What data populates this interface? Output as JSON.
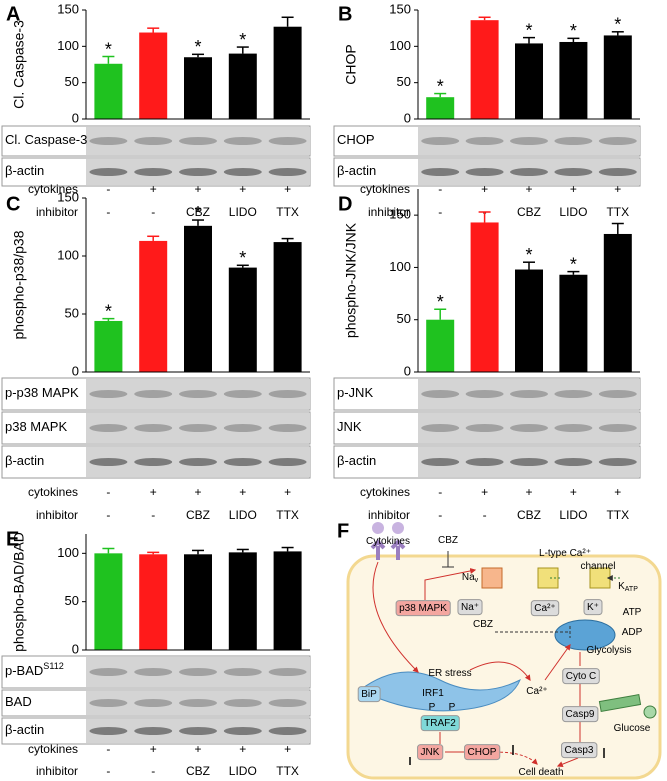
{
  "chart_data": [
    {
      "type": "bar",
      "panel": "A",
      "y_label": "Cl. Caspase-3",
      "values": [
        76,
        119,
        85,
        90,
        127
      ],
      "errors": [
        10,
        6,
        4,
        9,
        13
      ],
      "markers": [
        "*",
        null,
        "*",
        "*",
        null
      ],
      "colors": [
        "#1fc21f",
        "#ff1a1a",
        "#000000",
        "#000000",
        "#000000"
      ],
      "ylim": [
        0,
        150
      ],
      "yticks": [
        0,
        50,
        100,
        150
      ],
      "blots": [
        {
          "label": "Cl. Caspase-3"
        },
        {
          "label": "β-actin"
        }
      ],
      "condition_rows": [
        {
          "label": "cytokines",
          "values": [
            "-",
            "+",
            "+",
            "+",
            "+"
          ]
        },
        {
          "label": "inhibitor",
          "values": [
            "-",
            "-",
            "CBZ",
            "LIDO",
            "TTX"
          ]
        }
      ]
    },
    {
      "type": "bar",
      "panel": "B",
      "y_label": "CHOP",
      "values": [
        30,
        136,
        104,
        106,
        115
      ],
      "errors": [
        5,
        4,
        8,
        5,
        5
      ],
      "markers": [
        "*",
        null,
        "*",
        "*",
        "*"
      ],
      "colors": [
        "#1fc21f",
        "#ff1a1a",
        "#000000",
        "#000000",
        "#000000"
      ],
      "ylim": [
        0,
        150
      ],
      "yticks": [
        0,
        50,
        100,
        150
      ],
      "blots": [
        {
          "label": "CHOP"
        },
        {
          "label": "β-actin"
        }
      ],
      "condition_rows": [
        {
          "label": "cytokines",
          "values": [
            "-",
            "+",
            "+",
            "+",
            "+"
          ]
        },
        {
          "label": "inhibitor",
          "values": [
            "-",
            "-",
            "CBZ",
            "LIDO",
            "TTX"
          ]
        }
      ]
    },
    {
      "type": "bar",
      "panel": "C",
      "y_label": "phospho-p38/p38",
      "values": [
        44,
        113,
        126,
        90,
        112
      ],
      "errors": [
        2,
        4,
        5,
        2,
        3
      ],
      "markers": [
        "*",
        null,
        "*",
        "*",
        null
      ],
      "colors": [
        "#1fc21f",
        "#ff1a1a",
        "#000000",
        "#000000",
        "#000000"
      ],
      "ylim": [
        0,
        150
      ],
      "yticks": [
        0,
        50,
        100,
        150
      ],
      "blots": [
        {
          "label": "p-p38 MAPK"
        },
        {
          "label": "p38 MAPK"
        },
        {
          "label": "β-actin"
        }
      ],
      "condition_rows": [
        {
          "label": "cytokines",
          "values": [
            "-",
            "+",
            "+",
            "+",
            "+"
          ]
        },
        {
          "label": "inhibitor",
          "values": [
            "-",
            "-",
            "CBZ",
            "LIDO",
            "TTX"
          ]
        }
      ]
    },
    {
      "type": "bar",
      "panel": "D",
      "y_label": "phospho-JNK/JNK",
      "values": [
        50,
        143,
        98,
        93,
        132
      ],
      "errors": [
        10,
        10,
        7,
        3,
        10
      ],
      "markers": [
        "*",
        null,
        "*",
        "*",
        null
      ],
      "colors": [
        "#1fc21f",
        "#ff1a1a",
        "#000000",
        "#000000",
        "#000000"
      ],
      "ylim": [
        0,
        175
      ],
      "yticks": [
        0,
        50,
        100,
        150
      ],
      "blots": [
        {
          "label": "p-JNK"
        },
        {
          "label": "JNK"
        },
        {
          "label": "β-actin"
        }
      ],
      "condition_rows": [
        {
          "label": "cytokines",
          "values": [
            "-",
            "+",
            "+",
            "+",
            "+"
          ]
        },
        {
          "label": "inhibitor",
          "values": [
            "-",
            "-",
            "CBZ",
            "LIDO",
            "TTX"
          ]
        }
      ]
    },
    {
      "type": "bar",
      "panel": "E",
      "y_label": "phospho-BAD/BAD",
      "values": [
        100,
        99,
        99,
        101,
        102
      ],
      "errors": [
        5,
        2,
        4,
        3,
        4
      ],
      "markers": [
        null,
        null,
        null,
        null,
        null
      ],
      "colors": [
        "#1fc21f",
        "#ff1a1a",
        "#000000",
        "#000000",
        "#000000"
      ],
      "ylim": [
        0,
        120
      ],
      "yticks": [
        0,
        50,
        100
      ],
      "blots": [
        {
          "label": "p-BAD",
          "sup": "S112"
        },
        {
          "label": "BAD"
        },
        {
          "label": "β-actin"
        }
      ],
      "condition_rows": [
        {
          "label": "cytokines",
          "values": [
            "-",
            "+",
            "+",
            "+",
            "+"
          ]
        },
        {
          "label": "inhibitor",
          "values": [
            "-",
            "-",
            "CBZ",
            "LIDO",
            "TTX"
          ]
        }
      ]
    }
  ],
  "diagram": {
    "panel": "F",
    "nodes": [
      {
        "text": "Cytokines"
      },
      {
        "text": "CBZ"
      },
      {
        "text": "Na",
        "sub": "v"
      },
      {
        "text": "L-type Ca²⁺"
      },
      {
        "text": "channel"
      },
      {
        "text": "K",
        "sub": "ATP"
      },
      {
        "text": "p38 MAPK"
      },
      {
        "text": "Na⁺"
      },
      {
        "text": "Ca²⁺"
      },
      {
        "text": "K⁺"
      },
      {
        "text": "ATP"
      },
      {
        "text": "ADP"
      },
      {
        "text": "CBZ"
      },
      {
        "text": "Glycolysis"
      },
      {
        "text": "ER stress"
      },
      {
        "text": "Ca²⁺"
      },
      {
        "text": "Cyto C"
      },
      {
        "text": "BiP"
      },
      {
        "text": "IRF1"
      },
      {
        "text": "P"
      },
      {
        "text": "P"
      },
      {
        "text": "TRAF2"
      },
      {
        "text": "Casp9"
      },
      {
        "text": "Glucose"
      },
      {
        "text": "Casp3"
      },
      {
        "text": "JNK"
      },
      {
        "text": "CHOP"
      },
      {
        "text": "Cell death"
      }
    ]
  }
}
